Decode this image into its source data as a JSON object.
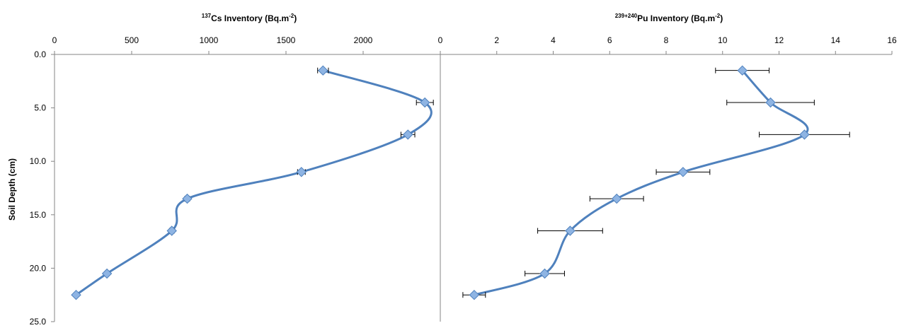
{
  "chart_data": [
    {
      "type": "line",
      "title_sup": "137",
      "title": "Cs Inventory (Bq.m-2)",
      "title_main": "Cs Inventory (Bq.m",
      "title_unit_sup": "-2",
      "title_close": ")",
      "ylabel": "Soil Depth (cm)",
      "xlim": [
        0,
        2500
      ],
      "ylim": [
        0,
        25
      ],
      "y_reversed": true,
      "x_axis_position": "top",
      "grid": false,
      "x_ticks": [
        0,
        500,
        1000,
        1500,
        2000
      ],
      "x_tick_labels": [
        "0",
        "500",
        "1000",
        "1500",
        "2000"
      ],
      "y_ticks": [
        0,
        5,
        10,
        15,
        20,
        25
      ],
      "y_tick_labels": [
        "0.0",
        "5.0",
        "10.0",
        "15.0",
        "20.0",
        "25.0"
      ],
      "series": [
        {
          "x": [
            1740,
            2400,
            2290,
            1600,
            860,
            760,
            340,
            140
          ],
          "y": [
            1.5,
            4.5,
            7.5,
            11,
            13.5,
            16.5,
            20.5,
            22.5
          ],
          "x_err": [
            35,
            55,
            45,
            25,
            15,
            15,
            10,
            5
          ]
        }
      ]
    },
    {
      "type": "line",
      "title_sup": "239+240",
      "title": "Pu Inventory (Bq.m-2)",
      "title_main": "Pu Inventory (Bq.m",
      "title_unit_sup": "-2",
      "title_close": ")",
      "xlim": [
        0,
        16
      ],
      "ylim": [
        0,
        25
      ],
      "y_reversed": true,
      "x_axis_position": "top",
      "grid": false,
      "x_ticks": [
        0,
        2,
        4,
        6,
        8,
        10,
        12,
        14,
        16
      ],
      "x_tick_labels": [
        "0",
        "2",
        "4",
        "6",
        "8",
        "10",
        "12",
        "14",
        "16"
      ],
      "series": [
        {
          "x": [
            10.7,
            11.7,
            12.9,
            8.6,
            6.25,
            4.6,
            3.7,
            1.2
          ],
          "y": [
            1.5,
            4.5,
            7.5,
            11,
            13.5,
            16.5,
            20.5,
            22.5
          ],
          "x_err": [
            0.95,
            1.55,
            1.6,
            0.95,
            0.95,
            1.15,
            0.7,
            0.4
          ]
        }
      ]
    }
  ]
}
